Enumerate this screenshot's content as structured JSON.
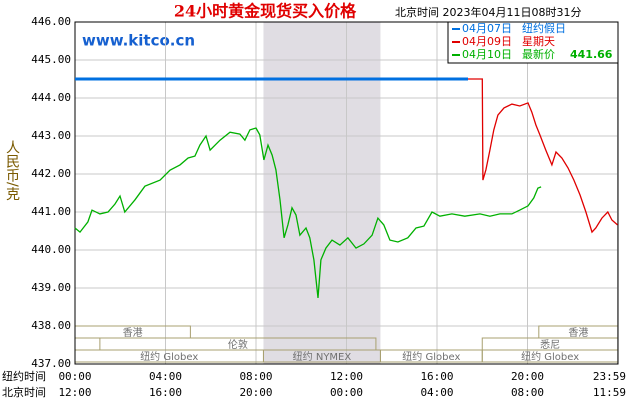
{
  "chart_data": {
    "type": "line",
    "title": "24小时黄金现货买入价格",
    "subtitle": "北京时间  2023年04月11日08时31分",
    "watermark": "www.kitco.cn",
    "ylabel": "人民币/克",
    "xlabel": "纽约时间",
    "x2label": "北京时间",
    "xlim": [
      0,
      24
    ],
    "ylim": [
      437,
      446
    ],
    "yticks": [
      {
        "value": 437,
        "label": "437.00"
      },
      {
        "value": 438,
        "label": "438.00"
      },
      {
        "value": 439,
        "label": "439.00"
      },
      {
        "value": 440,
        "label": "440.00"
      },
      {
        "value": 441,
        "label": "441.00"
      },
      {
        "value": 442,
        "label": "442.00"
      },
      {
        "value": 443,
        "label": "443.00"
      },
      {
        "value": 444,
        "label": "444.00"
      },
      {
        "value": 445,
        "label": "445.00"
      },
      {
        "value": 446,
        "label": "446.00"
      }
    ],
    "xticks": [
      {
        "value": 0,
        "label": "00:00"
      },
      {
        "value": 4,
        "label": "04:00"
      },
      {
        "value": 8,
        "label": "08:00"
      },
      {
        "value": 12,
        "label": "12:00"
      },
      {
        "value": 16,
        "label": "16:00"
      },
      {
        "value": 20,
        "label": "20:00"
      },
      {
        "value": 23.983,
        "label": "23:59"
      }
    ],
    "x2ticks": [
      {
        "value": 0,
        "label": "12:00"
      },
      {
        "value": 4,
        "label": "16:00"
      },
      {
        "value": 8,
        "label": "20:00"
      },
      {
        "value": 12,
        "label": "00:00"
      },
      {
        "value": 16,
        "label": "04:00"
      },
      {
        "value": 20,
        "label": "08:00"
      },
      {
        "value": 23.983,
        "label": "11:59"
      }
    ],
    "grid": true,
    "highlight": [
      8.33,
      13.5
    ],
    "session_rows": [
      [
        {
          "label": "香港",
          "start": 0,
          "end": 5.1
        },
        {
          "label": "香港",
          "start": 20.5,
          "end": 24
        }
      ],
      [
        {
          "label": "伦敦",
          "start": 1.1,
          "end": 13.3
        },
        {
          "label": "悉尼",
          "start": 18,
          "end": 24
        }
      ],
      [
        {
          "label": "纽约 Globex",
          "start": 0,
          "end": 8.33
        },
        {
          "label": "纽约 NYMEX",
          "start": 8.33,
          "end": 13.5
        },
        {
          "label": "纽约 Globex",
          "start": 13.5,
          "end": 18
        },
        {
          "label": "纽约 Globex",
          "start": 18,
          "end": 24
        }
      ]
    ],
    "series": [
      {
        "name": "04月07日",
        "note": "纽约假日",
        "color": "#0070e0",
        "x": [
          0,
          17.37
        ],
        "values": [
          444.5,
          444.5
        ]
      },
      {
        "name": "04月09日",
        "note": "星期天",
        "color": "#e00000",
        "x": [
          17.37,
          18.0,
          18.03,
          18.16,
          18.34,
          18.51,
          18.69,
          18.96,
          19.31,
          19.66,
          20.02,
          20.19,
          20.37,
          20.55,
          20.81,
          21.08,
          21.26,
          21.52,
          21.79,
          22.05,
          22.32,
          22.58,
          22.85,
          23.02,
          23.29,
          23.55,
          23.73,
          23.98
        ],
        "values": [
          444.5,
          444.5,
          441.84,
          442.11,
          442.63,
          443.16,
          443.55,
          443.74,
          443.84,
          443.79,
          443.87,
          443.63,
          443.29,
          443.03,
          442.63,
          442.24,
          442.58,
          442.42,
          442.16,
          441.84,
          441.45,
          441.0,
          440.47,
          440.58,
          440.84,
          441.0,
          440.79,
          440.66
        ]
      },
      {
        "name": "04月10日",
        "note": "最新价",
        "latest": 441.66,
        "color": "#00b000",
        "x": [
          0,
          0.22,
          0.57,
          0.75,
          1.1,
          1.46,
          1.77,
          1.99,
          2.2,
          2.65,
          3.09,
          3.76,
          4.2,
          4.64,
          5.0,
          5.3,
          5.52,
          5.79,
          5.97,
          6.41,
          6.85,
          7.29,
          7.51,
          7.73,
          8.0,
          8.17,
          8.35,
          8.53,
          8.71,
          8.88,
          9.06,
          9.24,
          9.41,
          9.59,
          9.77,
          9.94,
          10.21,
          10.38,
          10.56,
          10.74,
          10.87,
          11.09,
          11.36,
          11.71,
          12.06,
          12.42,
          12.77,
          13.13,
          13.39,
          13.65,
          13.92,
          14.27,
          14.71,
          15.07,
          15.42,
          15.78,
          16.13,
          16.66,
          17.23,
          17.9,
          18.34,
          18.78,
          19.31,
          19.66,
          20.02,
          20.28,
          20.46,
          20.6
        ],
        "values": [
          440.58,
          440.47,
          440.74,
          441.05,
          440.95,
          441.0,
          441.21,
          441.42,
          441.0,
          441.32,
          441.68,
          441.84,
          442.1,
          442.24,
          442.42,
          442.47,
          442.76,
          443.0,
          442.63,
          442.89,
          443.1,
          443.05,
          442.89,
          443.16,
          443.21,
          443.03,
          442.37,
          442.76,
          442.5,
          442.11,
          441.32,
          440.32,
          440.66,
          441.11,
          440.92,
          440.39,
          440.58,
          440.32,
          439.74,
          438.74,
          439.74,
          440.05,
          440.26,
          440.13,
          440.32,
          440.05,
          440.16,
          440.39,
          440.84,
          440.66,
          440.26,
          440.21,
          440.32,
          440.58,
          440.63,
          441.0,
          440.89,
          440.95,
          440.89,
          440.95,
          440.89,
          440.95,
          440.95,
          441.05,
          441.16,
          441.37,
          441.63,
          441.66
        ]
      }
    ]
  }
}
